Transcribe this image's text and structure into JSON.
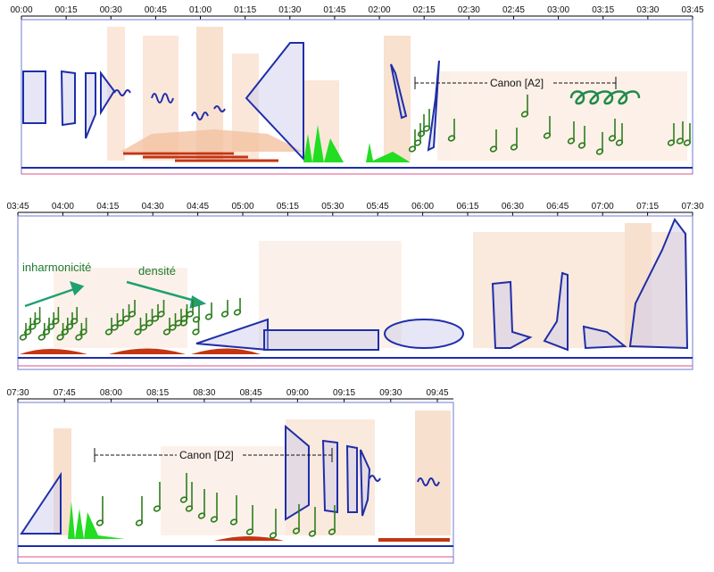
{
  "rows": [
    {
      "ticks": [
        "00:00",
        "00:15",
        "00:30",
        "00:45",
        "01:00",
        "01:15",
        "01:30",
        "01:45",
        "02:00",
        "02:15",
        "02:30",
        "02:45",
        "03:00",
        "03:15",
        "03:30",
        "03:45"
      ]
    },
    {
      "ticks": [
        "03:45",
        "04:00",
        "04:15",
        "04:30",
        "04:45",
        "05:00",
        "05:15",
        "05:30",
        "05:45",
        "06:00",
        "06:15",
        "06:30",
        "06:45",
        "07:00",
        "07:15",
        "07:30"
      ]
    },
    {
      "ticks": [
        "07:30",
        "07:45",
        "08:00",
        "08:15",
        "08:30",
        "08:45",
        "09:00",
        "09:15",
        "09:30",
        "09:45"
      ]
    }
  ],
  "annotations": {
    "canon_a2": "Canon [A2]",
    "canon_d2": "Canon [D2]",
    "inharmonicite": "inharmonicité",
    "densite": "densité"
  },
  "colors": {
    "frame": "#6f7bd6",
    "shape_blue": "#1f2ea8",
    "green_fill": "#22dd22",
    "note_green": "#2e7d1e",
    "red_bar": "#c43512",
    "spectro": "#f2c2a0"
  }
}
